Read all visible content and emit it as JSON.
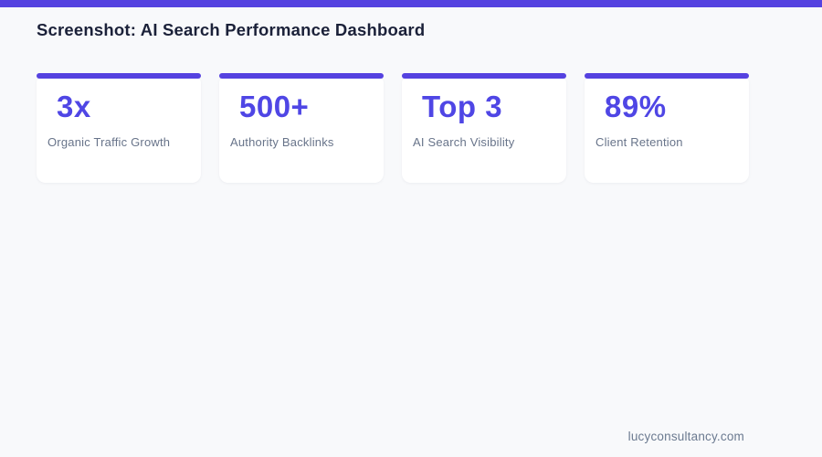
{
  "page": {
    "title": "Screenshot: AI Search Performance Dashboard",
    "footer_domain": "lucyconsultancy.com"
  },
  "colors": {
    "accent": "#5542e0",
    "value": "#4f46e5",
    "title": "#1b2139",
    "label": "#68748a",
    "background": "#f8f9fb",
    "card": "#ffffff"
  },
  "stats": [
    {
      "value": "3x",
      "label": "Organic Traffic Growth"
    },
    {
      "value": "500+",
      "label": "Authority Backlinks"
    },
    {
      "value": "Top 3",
      "label": "AI Search Visibility"
    },
    {
      "value": "89%",
      "label": "Client Retention"
    }
  ]
}
